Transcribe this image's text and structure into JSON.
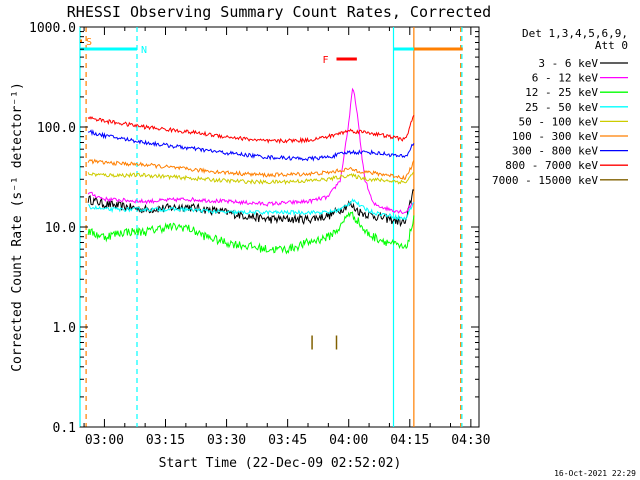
{
  "chart_data": {
    "type": "line",
    "title": "RHESSI Observing Summary Count Rates, Corrected",
    "xlabel": "Start Time (22-Dec-09 02:52:02)",
    "ylabel": "Corrected Count Rate (s⁻¹ detector⁻¹)",
    "ylog": true,
    "ylim": [
      0.1,
      1000.0
    ],
    "xlim_minutes": [
      -6,
      92
    ],
    "x_ticks": [
      {
        "label": "03:00",
        "minutes": 0
      },
      {
        "label": "03:15",
        "minutes": 15
      },
      {
        "label": "03:30",
        "minutes": 30
      },
      {
        "label": "03:45",
        "minutes": 45
      },
      {
        "label": "04:00",
        "minutes": 60
      },
      {
        "label": "04:15",
        "minutes": 75
      },
      {
        "label": "04:30",
        "minutes": 90
      }
    ],
    "y_ticks": [
      {
        "label": "0.1",
        "value": 0.1
      },
      {
        "label": "1.0",
        "value": 1.0
      },
      {
        "label": "10.0",
        "value": 10.0
      },
      {
        "label": "100.0",
        "value": 100.0
      },
      {
        "label": "1000.0",
        "value": 1000.0
      }
    ],
    "legend_header": [
      "Det 1,3,4,5,6,9,",
      "Att 0"
    ],
    "legend_placement": "right",
    "series": [
      {
        "name": "3 - 6 keV",
        "color": "#000000",
        "x": [
          -4,
          0,
          10,
          20,
          30,
          40,
          45,
          50,
          55,
          58,
          60,
          63,
          66,
          70,
          74,
          76
        ],
        "y": [
          19,
          17,
          15,
          16,
          14,
          12,
          12,
          12,
          13,
          15,
          17,
          14,
          13,
          12,
          11,
          25
        ]
      },
      {
        "name": "6 - 12 keV",
        "color": "#ff00ff",
        "x": [
          -4,
          0,
          10,
          20,
          30,
          40,
          50,
          55,
          58,
          60,
          61,
          62,
          63,
          64,
          66,
          70,
          74,
          76
        ],
        "y": [
          22,
          19,
          18,
          19,
          18,
          17,
          18,
          20,
          30,
          110,
          250,
          150,
          60,
          30,
          17,
          15,
          14,
          18
        ]
      },
      {
        "name": "12 - 25 keV",
        "color": "#00ff00",
        "x": [
          -4,
          0,
          5,
          10,
          15,
          20,
          25,
          30,
          40,
          45,
          50,
          55,
          58,
          60,
          62,
          64,
          66,
          70,
          74,
          76
        ],
        "y": [
          9,
          8,
          9,
          9,
          10,
          10,
          8,
          7,
          6,
          6,
          7,
          8,
          10,
          14,
          12,
          9,
          8,
          7,
          6,
          12
        ]
      },
      {
        "name": "25 - 50 keV",
        "color": "#00ffff",
        "x": [
          -4,
          0,
          10,
          20,
          30,
          40,
          50,
          55,
          58,
          60,
          61,
          63,
          66,
          70,
          74,
          76
        ],
        "y": [
          16,
          15,
          15,
          15,
          14,
          14,
          14,
          14,
          15,
          17,
          19,
          16,
          14,
          13,
          12,
          18
        ]
      },
      {
        "name": "50 - 100 keV",
        "color": "#cccc00",
        "x": [
          -4,
          0,
          10,
          20,
          30,
          40,
          50,
          55,
          60,
          65,
          70,
          74,
          76
        ],
        "y": [
          34,
          33,
          33,
          31,
          29,
          28,
          29,
          30,
          33,
          30,
          29,
          28,
          35
        ]
      },
      {
        "name": "100 - 300 keV",
        "color": "#ff7f00",
        "x": [
          -4,
          0,
          10,
          20,
          30,
          40,
          50,
          55,
          60,
          65,
          70,
          74,
          76
        ],
        "y": [
          46,
          44,
          42,
          38,
          35,
          33,
          34,
          35,
          38,
          35,
          33,
          31,
          45
        ]
      },
      {
        "name": "300 - 800 keV",
        "color": "#0000ff",
        "x": [
          -4,
          0,
          10,
          20,
          30,
          40,
          50,
          55,
          60,
          65,
          70,
          74,
          76
        ],
        "y": [
          90,
          82,
          70,
          62,
          55,
          50,
          48,
          50,
          56,
          56,
          53,
          50,
          70
        ]
      },
      {
        "name": "800 - 7000 keV",
        "color": "#ff0000",
        "x": [
          -4,
          0,
          10,
          20,
          30,
          40,
          50,
          55,
          60,
          65,
          70,
          74,
          76
        ],
        "y": [
          125,
          115,
          100,
          90,
          80,
          72,
          74,
          80,
          92,
          88,
          80,
          75,
          135
        ]
      },
      {
        "name": "7000 - 15000 keV",
        "color": "#806000",
        "ticks_x": [
          51,
          57
        ],
        "value": 0.7
      }
    ],
    "flag_bars": [
      {
        "label": "S",
        "color": "#ff7f00",
        "x_start": -6,
        "x_end": -5.5
      },
      {
        "label": "N",
        "color": "#00ffff",
        "x_start": -6,
        "x_end": 8
      },
      {
        "label": "F",
        "color": "#ff0000",
        "x_start": 57,
        "x_end": 62
      },
      {
        "label": "",
        "color": "#00ffff",
        "x_start": 71,
        "x_end": 88
      },
      {
        "label": "",
        "color": "#ff7f00",
        "x_start": 76,
        "x_end": 88
      }
    ],
    "vertical_markers": [
      {
        "color": "#ff7f00",
        "style": "dashed",
        "x": -4.5
      },
      {
        "color": "#00ffff",
        "style": "solid",
        "x": -6
      },
      {
        "color": "#00ffff",
        "style": "dashed",
        "x": 8
      },
      {
        "color": "#00ffff",
        "style": "solid",
        "x": 71
      },
      {
        "color": "#ff7f00",
        "style": "solid",
        "x": 76
      },
      {
        "color": "#ff7f00",
        "style": "dashed",
        "x": 87.5
      },
      {
        "color": "#00ffff",
        "style": "dashed",
        "x": 87.8
      }
    ]
  },
  "footer_date": "16-Oct-2021 22:29"
}
